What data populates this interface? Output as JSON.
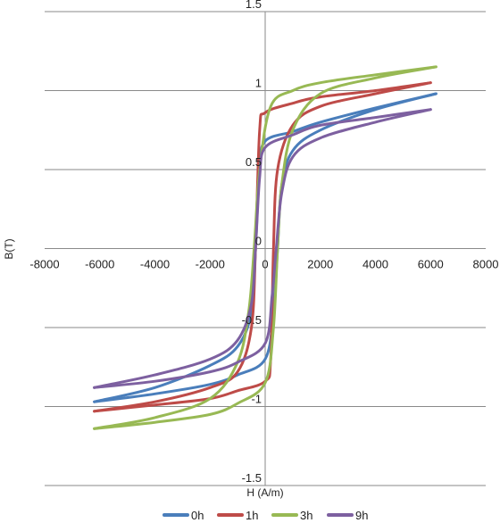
{
  "chart_data": {
    "type": "line",
    "title": "",
    "xlabel": "H (A/m)",
    "ylabel": "B(T)",
    "xlim": [
      -8000,
      8000
    ],
    "ylim": [
      -1.5,
      1.5
    ],
    "x_ticks": [
      -8000,
      -6000,
      -4000,
      -2000,
      0,
      2000,
      4000,
      6000,
      8000
    ],
    "y_ticks": [
      -1.5,
      -1,
      -0.5,
      0,
      0.5,
      1,
      1.5
    ],
    "x_tick_labels": [
      "-8000",
      "-6000",
      "-4000",
      "-2000",
      "0",
      "2000",
      "4000",
      "6000",
      "8000"
    ],
    "y_tick_labels": [
      "-1.5",
      "-1",
      "-0.5",
      "0",
      "0.5",
      "1",
      "1.5"
    ],
    "grid": "horizontal",
    "legend_position": "bottom",
    "series": [
      {
        "name": "0h",
        "color": "#4a7ebb",
        "ascending": [
          [
            -6200,
            -0.97
          ],
          [
            -4000,
            -0.92
          ],
          [
            -2000,
            -0.86
          ],
          [
            -1000,
            -0.8
          ],
          [
            0,
            -0.7
          ],
          [
            300,
            -0.4
          ],
          [
            450,
            0.0
          ],
          [
            600,
            0.4
          ],
          [
            1000,
            0.62
          ],
          [
            2000,
            0.75
          ],
          [
            4000,
            0.88
          ],
          [
            6200,
            0.98
          ]
        ],
        "descending": [
          [
            6200,
            0.98
          ],
          [
            4000,
            0.89
          ],
          [
            2000,
            0.8
          ],
          [
            1000,
            0.74
          ],
          [
            0,
            0.68
          ],
          [
            -200,
            0.5
          ],
          [
            -350,
            0.0
          ],
          [
            -500,
            -0.4
          ],
          [
            -1000,
            -0.62
          ],
          [
            -2000,
            -0.74
          ],
          [
            -4000,
            -0.88
          ],
          [
            -6200,
            -0.97
          ]
        ]
      },
      {
        "name": "1h",
        "color": "#be4b48",
        "ascending": [
          [
            -6200,
            -1.03
          ],
          [
            -4000,
            -0.99
          ],
          [
            -2000,
            -0.95
          ],
          [
            -1000,
            -0.9
          ],
          [
            0,
            -0.84
          ],
          [
            200,
            -0.7
          ],
          [
            300,
            0.0
          ],
          [
            450,
            0.5
          ],
          [
            1000,
            0.78
          ],
          [
            2000,
            0.9
          ],
          [
            4000,
            0.98
          ],
          [
            6000,
            1.05
          ]
        ],
        "descending": [
          [
            6000,
            1.05
          ],
          [
            4000,
            1.0
          ],
          [
            2000,
            0.96
          ],
          [
            1000,
            0.92
          ],
          [
            0,
            0.86
          ],
          [
            -200,
            0.75
          ],
          [
            -350,
            0.0
          ],
          [
            -500,
            -0.5
          ],
          [
            -1000,
            -0.78
          ],
          [
            -2000,
            -0.88
          ],
          [
            -4000,
            -0.97
          ],
          [
            -6200,
            -1.03
          ]
        ]
      },
      {
        "name": "3h",
        "color": "#98b954",
        "ascending": [
          [
            -6200,
            -1.14
          ],
          [
            -4000,
            -1.1
          ],
          [
            -2000,
            -1.05
          ],
          [
            -1000,
            -0.98
          ],
          [
            0,
            -0.85
          ],
          [
            300,
            -0.5
          ],
          [
            450,
            0.0
          ],
          [
            600,
            0.4
          ],
          [
            1000,
            0.75
          ],
          [
            2000,
            0.98
          ],
          [
            4000,
            1.08
          ],
          [
            6200,
            1.15
          ]
        ],
        "descending": [
          [
            6200,
            1.15
          ],
          [
            4000,
            1.1
          ],
          [
            2000,
            1.05
          ],
          [
            1000,
            1.0
          ],
          [
            200,
            0.9
          ],
          [
            -200,
            0.5
          ],
          [
            -400,
            0.0
          ],
          [
            -600,
            -0.4
          ],
          [
            -1000,
            -0.72
          ],
          [
            -2000,
            -0.95
          ],
          [
            -4000,
            -1.07
          ],
          [
            -6200,
            -1.14
          ]
        ]
      },
      {
        "name": "9h",
        "color": "#7d60a0",
        "ascending": [
          [
            -6200,
            -0.88
          ],
          [
            -4000,
            -0.84
          ],
          [
            -2000,
            -0.78
          ],
          [
            -1000,
            -0.72
          ],
          [
            0,
            -0.6
          ],
          [
            250,
            -0.3
          ],
          [
            400,
            0.0
          ],
          [
            600,
            0.35
          ],
          [
            1000,
            0.58
          ],
          [
            2000,
            0.7
          ],
          [
            4000,
            0.8
          ],
          [
            6000,
            0.88
          ]
        ],
        "descending": [
          [
            6000,
            0.88
          ],
          [
            4000,
            0.83
          ],
          [
            2000,
            0.78
          ],
          [
            1000,
            0.72
          ],
          [
            0,
            0.64
          ],
          [
            -200,
            0.45
          ],
          [
            -350,
            0.0
          ],
          [
            -500,
            -0.35
          ],
          [
            -1000,
            -0.58
          ],
          [
            -2000,
            -0.7
          ],
          [
            -4000,
            -0.8
          ],
          [
            -6200,
            -0.88
          ]
        ]
      }
    ]
  }
}
